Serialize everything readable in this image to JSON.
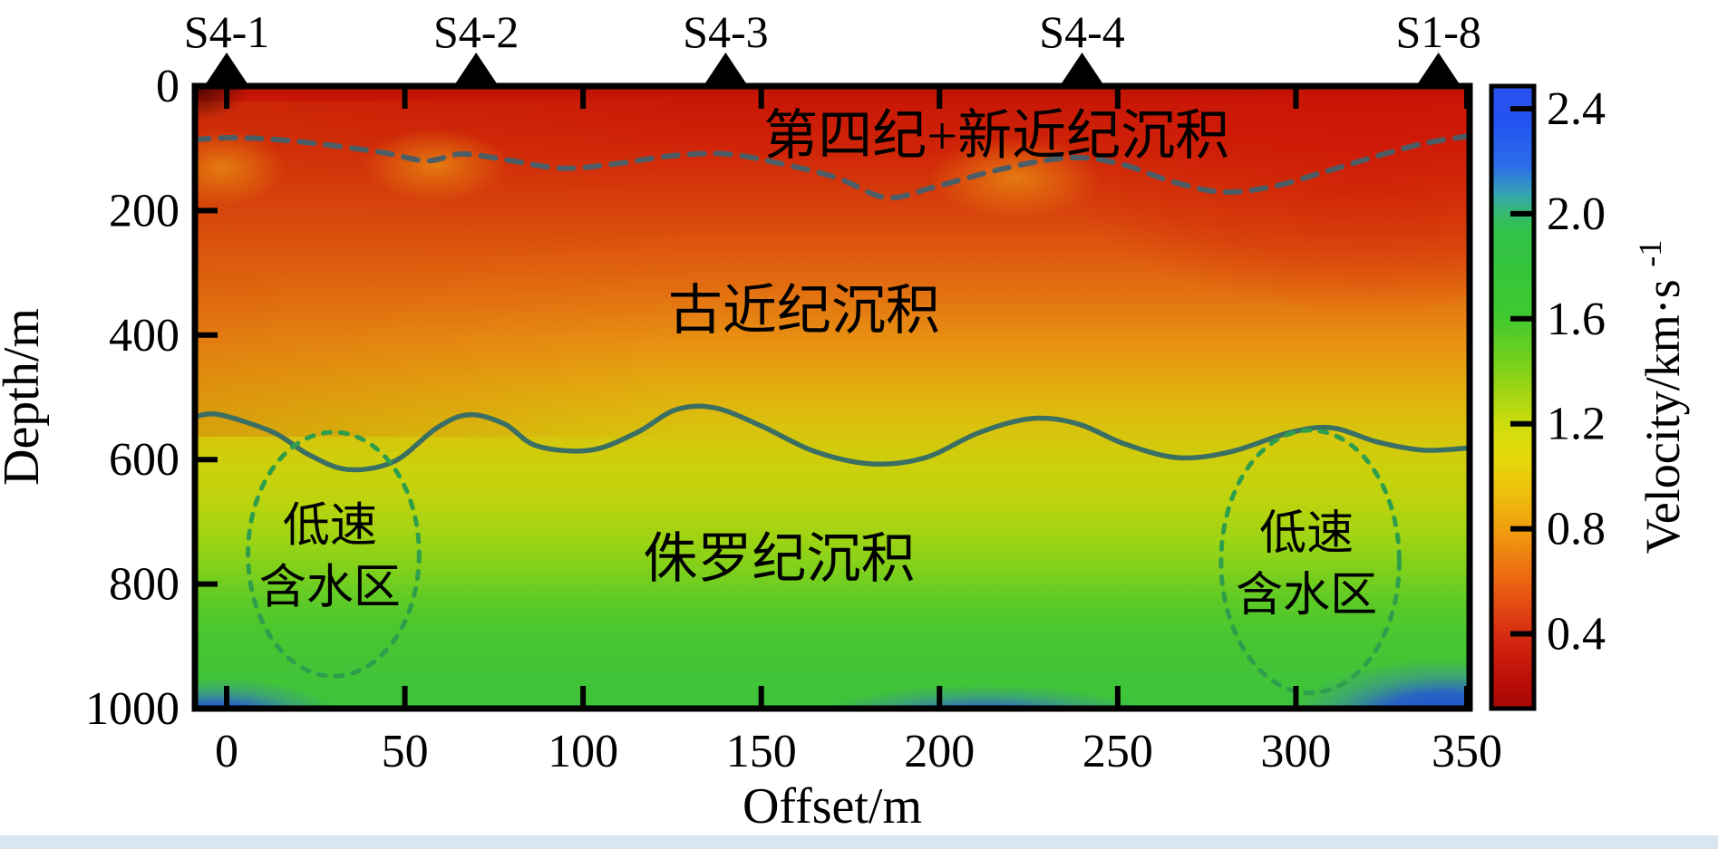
{
  "figure": {
    "xlabel": "Offset/m",
    "ylabel": "Depth/m",
    "colorbar_label_base": "Velocity/km·s",
    "colorbar_label_sup": "-1"
  },
  "chart_data": {
    "type": "heatmap",
    "title": "",
    "xlabel": "Offset/m",
    "ylabel": "Depth/m",
    "x_range": [
      -9,
      349
    ],
    "y_range": [
      0,
      1000
    ],
    "x_ticks": [
      "0",
      "50",
      "100",
      "150",
      "200",
      "250",
      "300",
      "350"
    ],
    "x_tick_values": [
      0,
      50,
      100,
      150,
      200,
      250,
      300,
      350
    ],
    "y_ticks": [
      "0",
      "200",
      "400",
      "600",
      "800",
      "1000"
    ],
    "y_tick_values": [
      0,
      200,
      400,
      600,
      800,
      1000
    ],
    "grid": false,
    "colorbar": {
      "label_base": "Velocity/km·s",
      "label_sup": "-1",
      "tick_values": [
        2.4,
        2.0,
        1.6,
        1.2,
        0.8,
        0.4
      ],
      "vmin": 0.1,
      "vmax": 2.5,
      "colormap": "jet",
      "position": "right"
    },
    "stations": [
      {
        "name": "S4-1",
        "offset": 0
      },
      {
        "name": "S4-2",
        "offset": 70
      },
      {
        "name": "S4-3",
        "offset": 140
      },
      {
        "name": "S4-4",
        "offset": 240
      },
      {
        "name": "S1-8",
        "offset": 340
      }
    ],
    "layer_labels": [
      {
        "text": "第四纪+新近纪沉积",
        "offset": 216,
        "depth": 80
      },
      {
        "text": "古近纪沉积",
        "offset": 162,
        "depth": 361
      },
      {
        "text": "侏罗纪沉积",
        "offset": 155,
        "depth": 760
      }
    ],
    "boundaries": [
      {
        "name": "quaternary_neogene_base",
        "style": "dashed",
        "color": "#4d5d66",
        "profile_offset_depth": [
          [
            -9,
            86
          ],
          [
            3,
            83
          ],
          [
            20,
            89
          ],
          [
            43,
            106
          ],
          [
            56,
            120
          ],
          [
            66,
            109
          ],
          [
            79,
            119
          ],
          [
            94,
            132
          ],
          [
            109,
            125
          ],
          [
            125,
            112
          ],
          [
            140,
            109
          ],
          [
            155,
            124
          ],
          [
            171,
            147
          ],
          [
            185,
            179
          ],
          [
            198,
            163
          ],
          [
            214,
            138
          ],
          [
            228,
            121
          ],
          [
            240,
            115
          ],
          [
            252,
            127
          ],
          [
            265,
            153
          ],
          [
            279,
            170
          ],
          [
            293,
            162
          ],
          [
            308,
            138
          ],
          [
            323,
            112
          ],
          [
            336,
            92
          ],
          [
            349,
            80
          ]
        ]
      },
      {
        "name": "paleogene_base",
        "style": "solid",
        "color": "#3c6f63",
        "profile_offset_depth": [
          [
            -9,
            531
          ],
          [
            -2,
            528
          ],
          [
            13,
            556
          ],
          [
            23,
            592
          ],
          [
            34,
            616
          ],
          [
            47,
            603
          ],
          [
            59,
            549
          ],
          [
            68,
            528
          ],
          [
            78,
            543
          ],
          [
            87,
            578
          ],
          [
            102,
            585
          ],
          [
            115,
            557
          ],
          [
            126,
            520
          ],
          [
            137,
            517
          ],
          [
            150,
            546
          ],
          [
            165,
            587
          ],
          [
            181,
            607
          ],
          [
            196,
            597
          ],
          [
            211,
            557
          ],
          [
            226,
            534
          ],
          [
            239,
            543
          ],
          [
            252,
            575
          ],
          [
            267,
            597
          ],
          [
            282,
            587
          ],
          [
            298,
            557
          ],
          [
            310,
            549
          ],
          [
            323,
            572
          ],
          [
            336,
            585
          ],
          [
            349,
            581
          ]
        ]
      }
    ],
    "low_velocity_zones": [
      {
        "line1": "低速",
        "line2": "含水区",
        "center_offset": 30,
        "center_depth": 752,
        "radius_offset_m": 24,
        "radius_depth_m": 196
      },
      {
        "line1": "低速",
        "line2": "含水区",
        "center_offset": 304,
        "center_depth": 764,
        "radius_offset_m": 25,
        "radius_depth_m": 211
      }
    ],
    "velocity_depth_trend_approx": [
      [
        0,
        0.25
      ],
      [
        100,
        0.45
      ],
      [
        200,
        0.65
      ],
      [
        300,
        0.9
      ],
      [
        400,
        1.15
      ],
      [
        500,
        1.4
      ],
      [
        600,
        1.75
      ],
      [
        800,
        1.85
      ],
      [
        1000,
        1.9
      ]
    ],
    "legend_position": "none"
  }
}
